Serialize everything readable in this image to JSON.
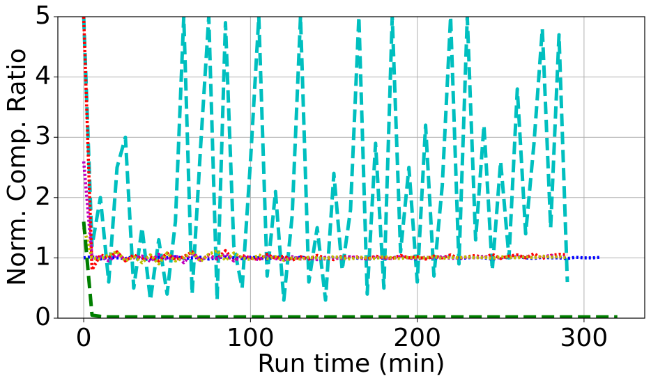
{
  "chart_data": {
    "type": "line",
    "xlabel": "Run time (min)",
    "ylabel": "Norm. Comp. Ratio",
    "x": [
      0,
      5,
      10,
      15,
      20,
      25,
      30,
      35,
      40,
      45,
      50,
      55,
      60,
      65,
      70,
      75,
      80,
      85,
      90,
      95,
      100,
      105,
      110,
      115,
      120,
      125,
      130,
      135,
      140,
      145,
      150,
      155,
      160,
      165,
      170,
      175,
      180,
      185,
      190,
      195,
      200,
      205,
      210,
      215,
      220,
      225,
      230,
      235,
      240,
      245,
      250,
      255,
      260,
      265,
      270,
      275,
      280,
      285,
      290,
      295,
      300,
      305,
      310,
      315,
      320
    ],
    "xlim": [
      -15.5,
      336.4
    ],
    "ylim": [
      0,
      5
    ],
    "xticks": [
      0,
      100,
      200,
      300
    ],
    "yticks": [
      0,
      1,
      2,
      3,
      4,
      5
    ],
    "grid": true,
    "series": [
      {
        "color": "#00bfbf",
        "linestyle": "dashed",
        "values": [
          5,
          1.2,
          2.0,
          0.6,
          2.5,
          3.0,
          0.5,
          1.5,
          0.3,
          1.3,
          0.4,
          1.6,
          5,
          0.4,
          2.8,
          5,
          0.3,
          4.9,
          1.2,
          0.5,
          2.6,
          5,
          0.7,
          2.1,
          0.3,
          1.7,
          5,
          0.6,
          1.5,
          0.3,
          2.4,
          0.8,
          1.8,
          5,
          0.4,
          2.9,
          0.5,
          5,
          1.1,
          2.5,
          0.6,
          3.2,
          0.7,
          2.2,
          5,
          0.9,
          5,
          1.3,
          3.2,
          0.8,
          2.6,
          1.0,
          3.8,
          1.4,
          2.9,
          4.8,
          1.5,
          4.7,
          0.6,
          null,
          null,
          null,
          null,
          null,
          null
        ]
      },
      {
        "color": "#0000ff",
        "linestyle": "dotted",
        "values": [
          1.0,
          1.02,
          0.98,
          1.01,
          1.0,
          0.99,
          1.02,
          1.0,
          0.98,
          1.01,
          1.0,
          1.02,
          0.99,
          1.0,
          1.01,
          0.98,
          1.0,
          1.02,
          1.0,
          0.99,
          1.01,
          1.0,
          0.98,
          1.02,
          1.0,
          0.99,
          1.01,
          1.0,
          1.0,
          0.98,
          1.01,
          1.0,
          1.02,
          0.99,
          1.0,
          1.01,
          0.99,
          1.0,
          1.02,
          1.0,
          0.98,
          1.01,
          1.0,
          1.0,
          1.02,
          0.99,
          1.0,
          1.01,
          1.0,
          0.98,
          1.01,
          1.0,
          1.02,
          1.0,
          0.99,
          1.01,
          1.0,
          1.0,
          0.99,
          1.01,
          1.0,
          1.0,
          1.01,
          null,
          null
        ]
      },
      {
        "color": "#ff0000",
        "linestyle": "dotted",
        "values": [
          5,
          0.8,
          1.05,
          1.0,
          1.1,
          0.95,
          1.05,
          0.98,
          1.02,
          0.95,
          1.08,
          0.97,
          1.02,
          1.1,
          0.96,
          1.05,
          0.98,
          1.12,
          0.95,
          1.04,
          1.0,
          0.97,
          1.06,
          0.99,
          1.03,
          0.96,
          1.02,
          0.98,
          1.04,
          1.0,
          0.97,
          1.03,
          1.0,
          1.02,
          0.98,
          1.03,
          1.0,
          0.99,
          1.04,
          1.0,
          1.02,
          0.98,
          1.03,
          1.0,
          1.05,
          0.99,
          1.02,
          1.04,
          1.0,
          1.06,
          0.99,
          1.03,
          1.05,
          1.0,
          1.07,
          0.99,
          1.04,
          1.06,
          1.05,
          null,
          null,
          null,
          null,
          null,
          null
        ]
      },
      {
        "color": "#bf00bf",
        "linestyle": "dotted",
        "values": [
          2.6,
          1.0,
          1.02,
          0.95,
          1.05,
          0.98,
          1.0,
          1.03,
          0.94,
          1.06,
          0.97,
          1.04,
          0.92,
          1.08,
          0.96,
          1.03,
          0.98,
          1.06,
          0.95,
          1.02,
          1.0,
          0.97,
          1.04,
          0.99,
          0.96,
          1.02,
          0.98,
          1.0,
          0.97,
          1.01,
          1.0,
          0.99,
          1.02,
          1.0,
          0.98,
          1.01,
          1.0,
          0.99,
          1.02,
          1.0,
          0.99,
          1.01,
          1.0,
          1.02,
          0.99,
          1.0,
          1.01,
          1.0,
          1.03,
          0.99,
          1.01,
          1.02,
          1.0,
          1.03,
          1.0,
          1.02,
          1.04,
          1.01,
          1.03,
          null,
          null,
          null,
          null,
          null,
          null
        ]
      },
      {
        "color": "#bfbf00",
        "linestyle": "dotted",
        "values": [
          1.5,
          1.0,
          0.98,
          1.05,
          1.1,
          0.95,
          1.02,
          0.92,
          1.05,
          0.9,
          1.08,
          0.95,
          1.0,
          1.1,
          0.94,
          1.06,
          1.12,
          0.96,
          1.08,
          1.0,
          0.97,
          1.05,
          0.99,
          1.02,
          0.96,
          1.0,
          0.98,
          1.01,
          1.0,
          0.99,
          1.02,
          1.0,
          0.98,
          1.01,
          1.0,
          0.99,
          1.02,
          1.0,
          0.99,
          1.01,
          1.0,
          1.0,
          1.02,
          0.99,
          1.01,
          1.0,
          1.02,
          1.0,
          1.01,
          0.99,
          1.02,
          1.01,
          1.0,
          1.02,
          1.0,
          1.03,
          1.01,
          1.02,
          1.0,
          null,
          null,
          null,
          null,
          null,
          null
        ]
      },
      {
        "color": "#007f00",
        "linestyle": "dashed",
        "values": [
          1.6,
          0.05,
          0.03,
          0.02,
          0.02,
          0.02,
          0.02,
          0.02,
          0.02,
          0.02,
          0.02,
          0.02,
          0.02,
          0.02,
          0.02,
          0.02,
          0.02,
          0.02,
          0.02,
          0.02,
          0.02,
          0.02,
          0.02,
          0.02,
          0.02,
          0.02,
          0.02,
          0.02,
          0.02,
          0.02,
          0.02,
          0.02,
          0.02,
          0.02,
          0.02,
          0.02,
          0.02,
          0.02,
          0.02,
          0.02,
          0.02,
          0.02,
          0.02,
          0.02,
          0.02,
          0.02,
          0.02,
          0.02,
          0.02,
          0.02,
          0.02,
          0.02,
          0.02,
          0.02,
          0.02,
          0.02,
          0.02,
          0.02,
          0.02,
          0.02,
          0.02,
          0.02,
          0.02,
          0.02,
          0.02
        ]
      }
    ]
  }
}
